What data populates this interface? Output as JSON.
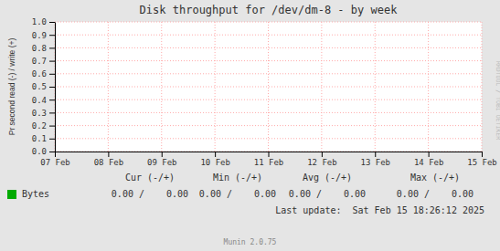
{
  "chart_data": {
    "type": "line",
    "title": "Disk throughput for /dev/dm-8  -  by week",
    "y_label": "Pr second read (-) / write (+)",
    "xlim": [
      0,
      8
    ],
    "xticks": [
      {
        "value": 0,
        "label": "07 Feb"
      },
      {
        "value": 1,
        "label": "08 Feb"
      },
      {
        "value": 2,
        "label": "09 Feb"
      },
      {
        "value": 3,
        "label": "10 Feb"
      },
      {
        "value": 4,
        "label": "11 Feb"
      },
      {
        "value": 5,
        "label": "12 Feb"
      },
      {
        "value": 6,
        "label": "13 Feb"
      },
      {
        "value": 7,
        "label": "14 Feb"
      },
      {
        "value": 8,
        "label": "15 Feb"
      }
    ],
    "ylim": [
      0.0,
      1.0
    ],
    "yticks": [
      {
        "value": 0.0,
        "label": "0.0"
      },
      0.1,
      0.2,
      0.3,
      0.4,
      0.5,
      0.6,
      0.7,
      0.8,
      0.9,
      {
        "value": 1.0,
        "label": "1.0"
      }
    ],
    "grid": true,
    "legend": "bottom",
    "series": [
      {
        "name": "Bytes",
        "color": "#00aa00",
        "values": []
      }
    ],
    "annotations": [
      "Cur (-/+)",
      "Min (-/+)",
      "Avg (-/+)",
      "Max (-/+)",
      "0.00 /    0.00",
      "0.00 /    0.00",
      "0.00 /    0.00",
      "0.00 /    0.00",
      "Last update:  Sat Feb 15 18:26:12 2025",
      "Munin 2.0.75",
      "RRDTOOL / TOBI OETIKER"
    ]
  }
}
